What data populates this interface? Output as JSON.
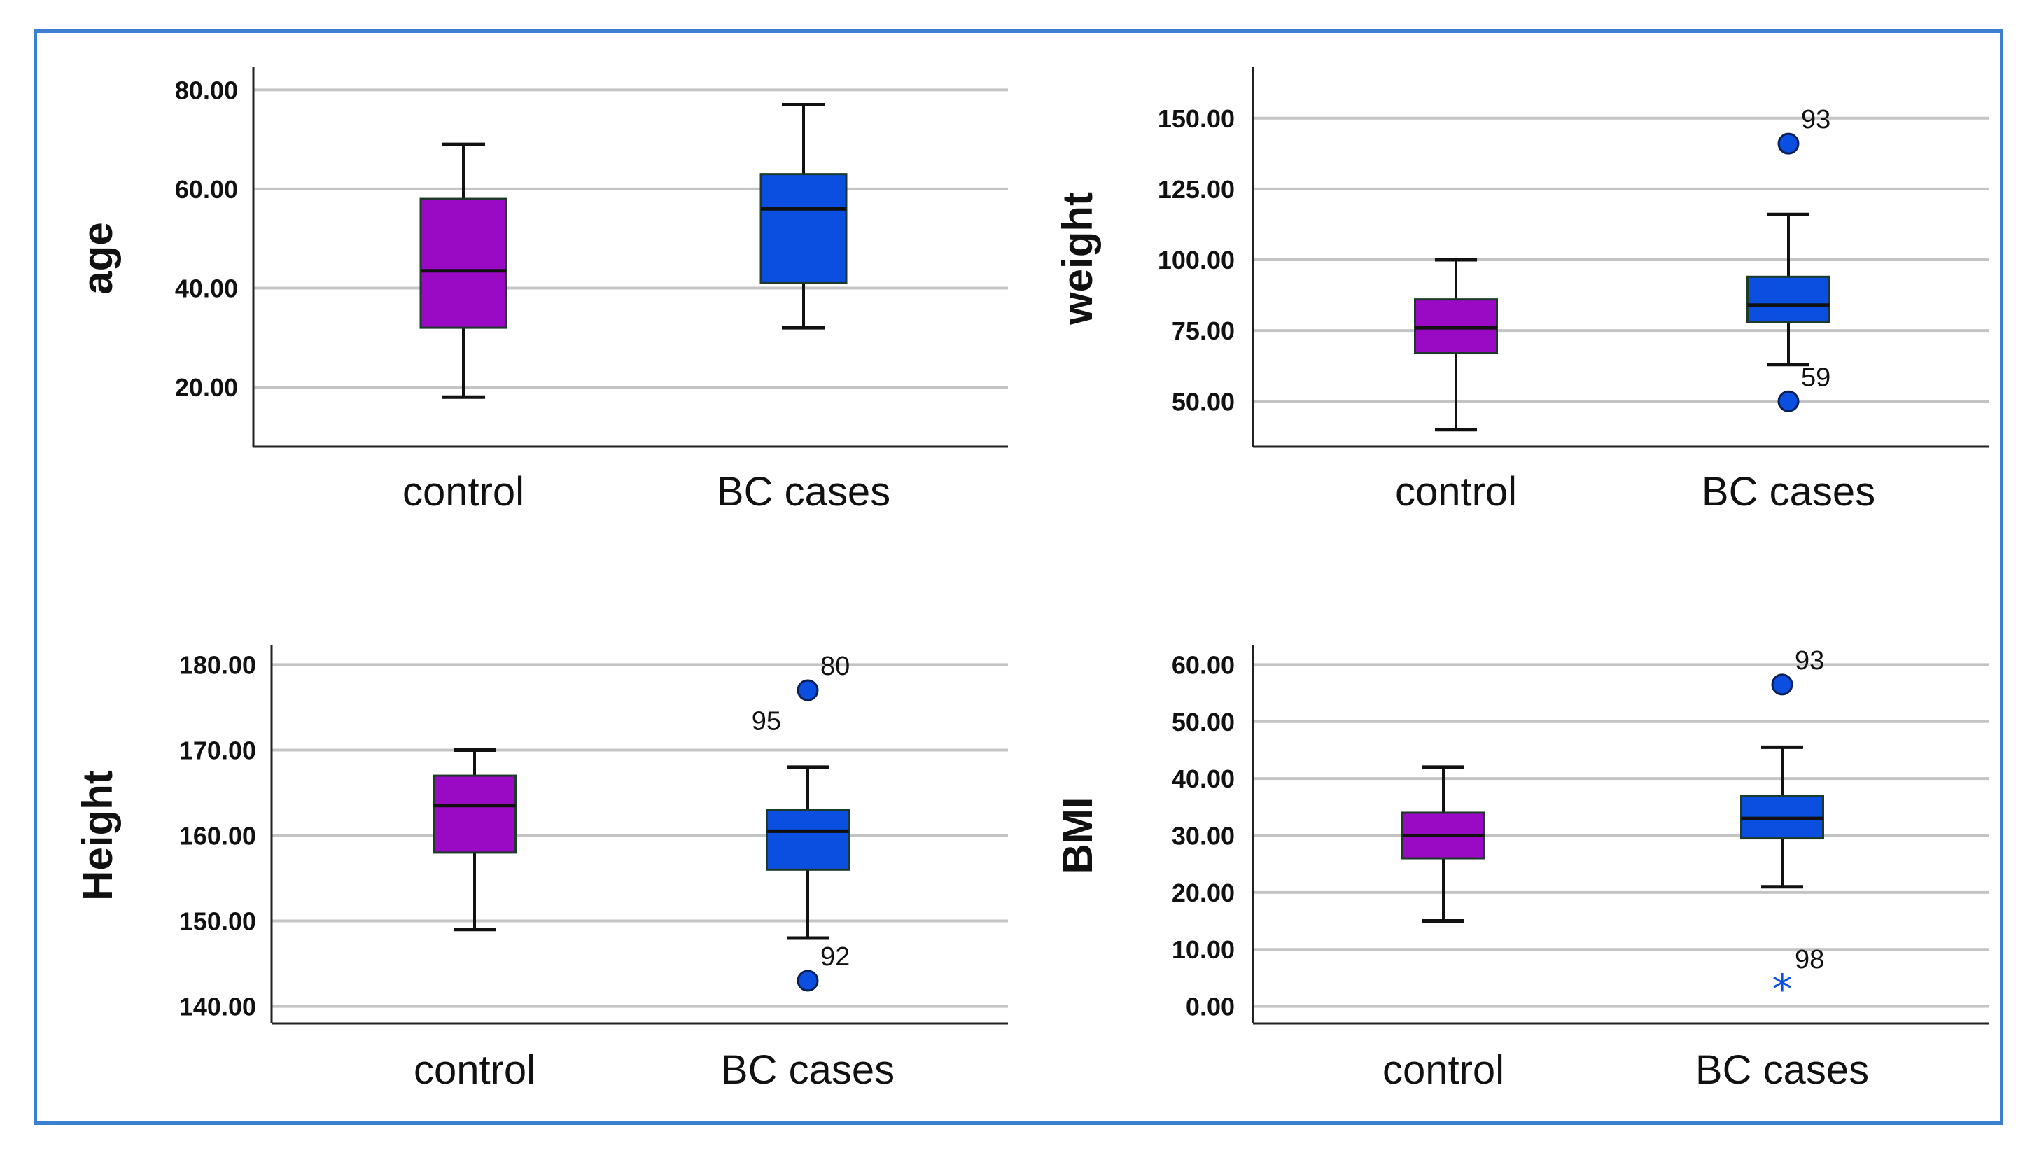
{
  "colors": {
    "control": "#9a0ac4",
    "cases": "#0a4fe0",
    "grid": "#c4c4c4",
    "frame": "#3b7fd0",
    "outlier": "#0a4fe0"
  },
  "chart_data": [
    {
      "type": "boxplot",
      "ylabel": "age",
      "ylim": [
        8,
        84
      ],
      "yticks": [
        20,
        40,
        60,
        80
      ],
      "tick_labels": [
        "20.00",
        "40.00",
        "60.00",
        "80.00"
      ],
      "categories": [
        "control",
        "BC cases"
      ],
      "boxes": [
        {
          "name": "control",
          "whisker_low": 18,
          "q1": 32,
          "median": 43.5,
          "q3": 58,
          "whisker_high": 69
        },
        {
          "name": "BC cases",
          "whisker_low": 32,
          "q1": 41,
          "median": 56,
          "q3": 63,
          "whisker_high": 77
        }
      ],
      "outliers": []
    },
    {
      "type": "boxplot",
      "ylabel": "weight",
      "ylim": [
        34,
        167
      ],
      "yticks": [
        50,
        75,
        100,
        125,
        150
      ],
      "tick_labels": [
        "50.00",
        "75.00",
        "100.00",
        "125.00",
        "150.00"
      ],
      "categories": [
        "control",
        "BC cases"
      ],
      "boxes": [
        {
          "name": "control",
          "whisker_low": 40,
          "q1": 67,
          "median": 76,
          "q3": 86,
          "whisker_high": 100
        },
        {
          "name": "BC cases",
          "whisker_low": 63,
          "q1": 78,
          "median": 84,
          "q3": 94,
          "whisker_high": 116
        }
      ],
      "outliers": [
        {
          "category": "BC cases",
          "value": 141,
          "label": "93",
          "marker": "circle"
        },
        {
          "category": "BC cases",
          "value": 50,
          "label": "59",
          "marker": "circle"
        }
      ]
    },
    {
      "type": "boxplot",
      "ylabel": "Height",
      "ylim": [
        138,
        182
      ],
      "yticks": [
        140,
        150,
        160,
        170,
        180
      ],
      "tick_labels": [
        "140.00",
        "150.00",
        "160.00",
        "170.00",
        "180.00"
      ],
      "categories": [
        "control",
        "BC cases"
      ],
      "boxes": [
        {
          "name": "control",
          "whisker_low": 149,
          "q1": 158,
          "median": 163.5,
          "q3": 167,
          "whisker_high": 170
        },
        {
          "name": "BC cases",
          "whisker_low": 148,
          "q1": 156,
          "median": 160.5,
          "q3": 163,
          "whisker_high": 168
        }
      ],
      "outliers": [
        {
          "category": "BC cases",
          "value": 177,
          "label": "80",
          "marker": "circle"
        },
        {
          "category": "BC cases",
          "value": 143,
          "label": "92",
          "marker": "circle"
        }
      ],
      "annotations": [
        {
          "category": "BC cases",
          "value": 173.5,
          "label": "95"
        }
      ]
    },
    {
      "type": "boxplot",
      "ylabel": "BMI",
      "ylim": [
        -3,
        63
      ],
      "yticks": [
        0,
        10,
        20,
        30,
        40,
        50,
        60
      ],
      "tick_labels": [
        "0.00",
        "10.00",
        "20.00",
        "30.00",
        "40.00",
        "50.00",
        "60.00"
      ],
      "categories": [
        "control",
        "BC cases"
      ],
      "boxes": [
        {
          "name": "control",
          "whisker_low": 15,
          "q1": 26,
          "median": 30,
          "q3": 34,
          "whisker_high": 42
        },
        {
          "name": "BC cases",
          "whisker_low": 21,
          "q1": 29.5,
          "median": 33,
          "q3": 37,
          "whisker_high": 45.5
        }
      ],
      "outliers": [
        {
          "category": "BC cases",
          "value": 56.5,
          "label": "93",
          "marker": "circle"
        },
        {
          "category": "BC cases",
          "value": 4,
          "label": "98",
          "marker": "star"
        }
      ]
    }
  ]
}
